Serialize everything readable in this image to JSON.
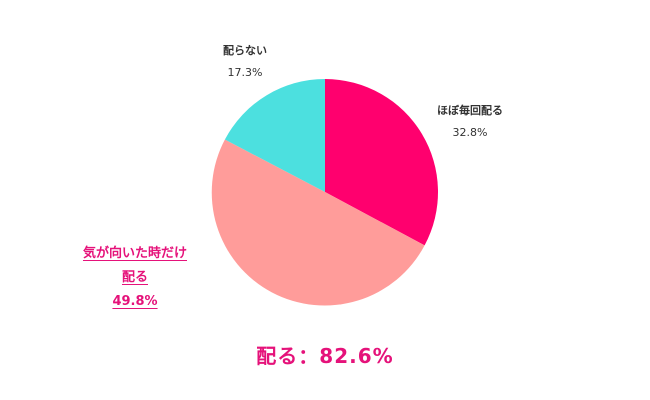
{
  "chart_data": {
    "type": "pie",
    "slices": [
      {
        "label": "ほぼ毎回配る",
        "percent_label": "32.8%",
        "value": 32.8,
        "color": "#ff006e"
      },
      {
        "label_lines": [
          "気が向いた時だけ",
          "配る"
        ],
        "percent_label": "49.8%",
        "value": 49.8,
        "color": "#ff9c9a"
      },
      {
        "label": "配らない",
        "percent_label": "17.3%",
        "value": 17.3,
        "color": "#4ce0df"
      }
    ],
    "start_angle": "12 o'clock",
    "direction": "clockwise",
    "summary": "配る：82.6%",
    "highlight_color": "#e5127a"
  }
}
